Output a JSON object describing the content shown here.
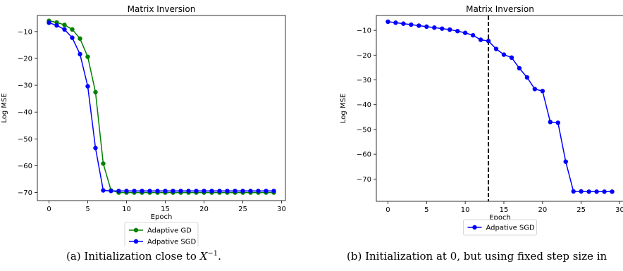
{
  "chart_data": [
    {
      "type": "line",
      "title": "Matrix Inversion",
      "xlabel": "Epoch",
      "ylabel": "Log MSE",
      "xlim": [
        -1.5,
        30.5
      ],
      "ylim": [
        -73,
        -4
      ],
      "xticks": [
        0,
        5,
        10,
        15,
        20,
        25,
        30
      ],
      "yticks": [
        -10,
        -20,
        -30,
        -40,
        -50,
        -60,
        -70
      ],
      "x": [
        0,
        1,
        2,
        3,
        4,
        5,
        6,
        7,
        8,
        9,
        10,
        11,
        12,
        13,
        14,
        15,
        16,
        17,
        18,
        19,
        20,
        21,
        22,
        23,
        24,
        25,
        26,
        27,
        28,
        29
      ],
      "legend_position": "below",
      "series": [
        {
          "name": "Adaptive GD",
          "color": "#008000",
          "values": [
            -6,
            -6.6,
            -7.5,
            -9.2,
            -12.6,
            -19.4,
            -32.6,
            -59.2,
            -69.2,
            -70,
            -70,
            -70,
            -70,
            -70,
            -70,
            -70,
            -70,
            -70,
            -70,
            -70,
            -70,
            -70,
            -70,
            -70,
            -70,
            -70,
            -70,
            -70,
            -70,
            -70
          ]
        },
        {
          "name": "Adpative SGD",
          "color": "#0000ff",
          "values": [
            -6.7,
            -7.7,
            -9.2,
            -12.3,
            -18.4,
            -30.4,
            -53.4,
            -69.2,
            -69.4,
            -69.4,
            -69.4,
            -69.4,
            -69.4,
            -69.4,
            -69.4,
            -69.4,
            -69.4,
            -69.4,
            -69.4,
            -69.4,
            -69.4,
            -69.4,
            -69.4,
            -69.4,
            -69.4,
            -69.4,
            -69.4,
            -69.4,
            -69.4,
            -69.4
          ]
        }
      ]
    },
    {
      "type": "line",
      "title": "Matrix Inversion",
      "xlabel": "Epoch",
      "ylabel": "Log MSE",
      "xlim": [
        -1.5,
        30.5
      ],
      "ylim": [
        -79,
        -4
      ],
      "xticks": [
        0,
        5,
        10,
        15,
        20,
        25,
        30
      ],
      "yticks": [
        -10,
        -20,
        -30,
        -40,
        -50,
        -60,
        -70
      ],
      "x": [
        0,
        1,
        2,
        3,
        4,
        5,
        6,
        7,
        8,
        9,
        10,
        11,
        12,
        13,
        14,
        15,
        16,
        17,
        18,
        19,
        20,
        21,
        22,
        23,
        24,
        25,
        26,
        27,
        28,
        29
      ],
      "vline_x": 13,
      "legend_position": "below",
      "series": [
        {
          "name": "Adpative SGD",
          "color": "#0000ff",
          "values": [
            -6.5,
            -6.9,
            -7.3,
            -7.7,
            -8.1,
            -8.5,
            -8.9,
            -9.3,
            -9.7,
            -10.3,
            -11.0,
            -12.0,
            -13.8,
            -14.3,
            -17.5,
            -19.8,
            -21.0,
            -25.3,
            -29.0,
            -33.7,
            -34.5,
            -47.0,
            -47.3,
            -63.0,
            -75.0,
            -75.0,
            -75.1,
            -75.1,
            -75.1,
            -75.1
          ]
        }
      ]
    }
  ],
  "captions": [
    "(a) Initialization close to ",
    "(b) Initialization at 0, but using fixed step size in"
  ],
  "caption_math": {
    "base": "X",
    "exponent": "−1",
    "suffix": "."
  }
}
